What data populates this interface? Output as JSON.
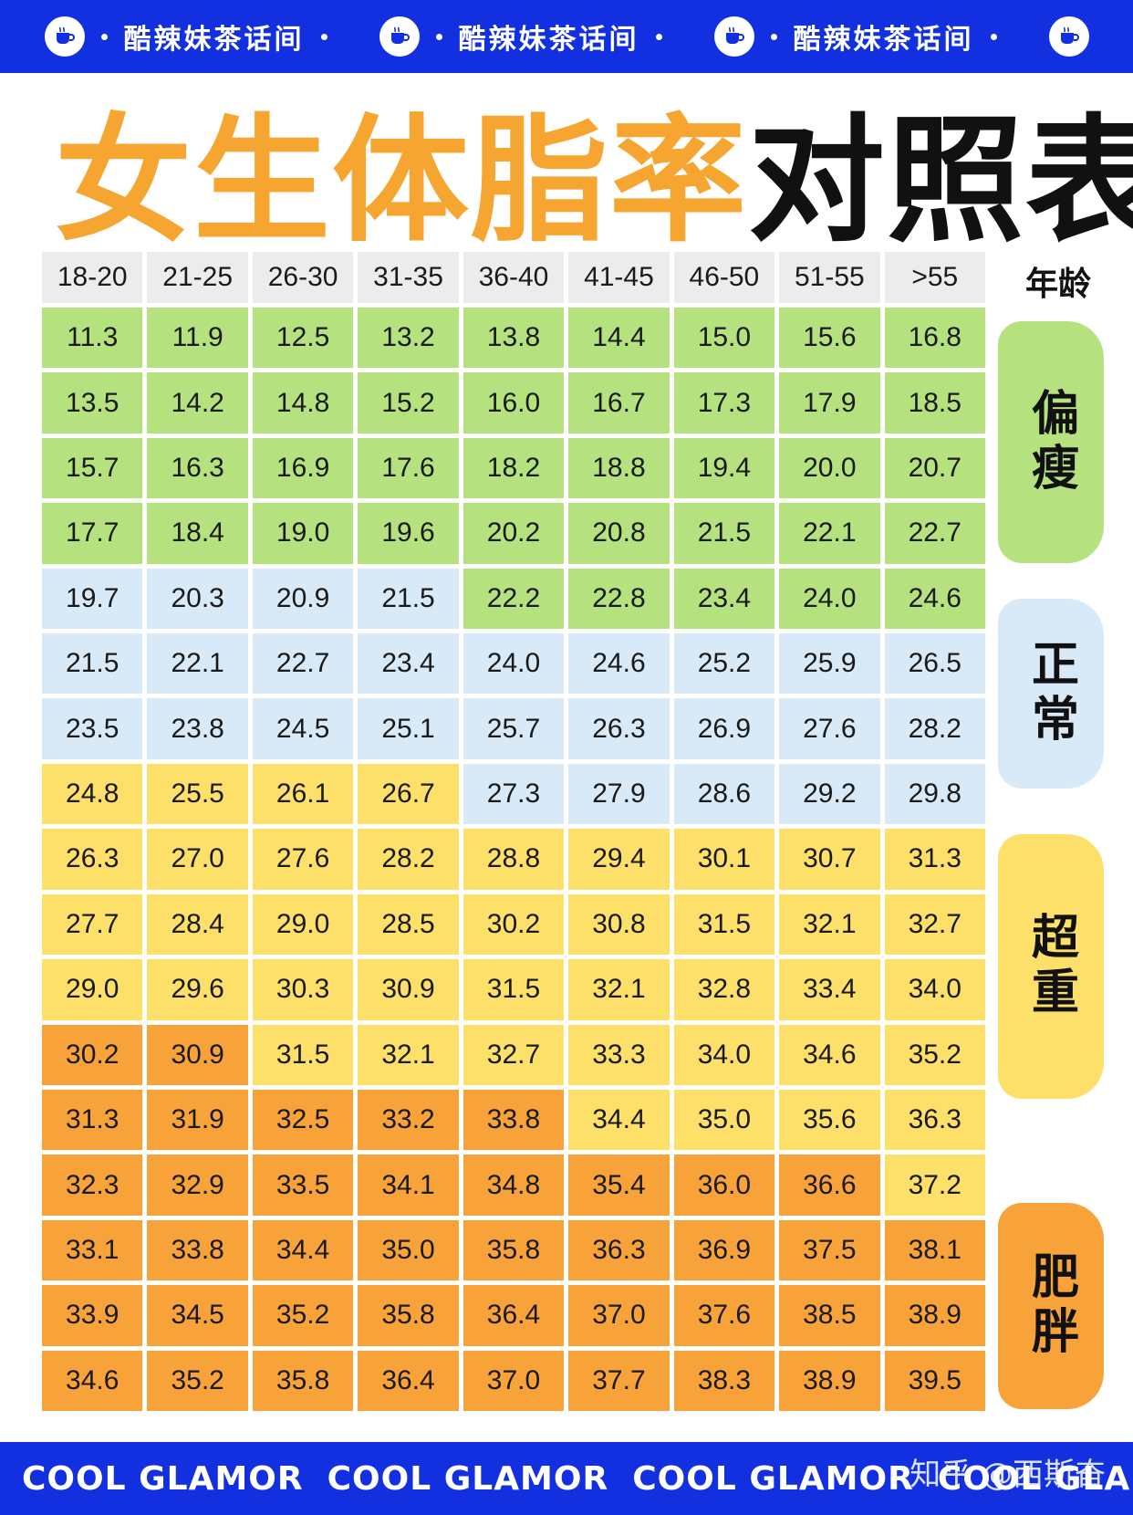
{
  "banner": {
    "text": "酷辣妹茶话间",
    "icon": "coffee-cup-icon"
  },
  "title": {
    "highlight": "女生体脂率",
    "rest": "对照表"
  },
  "age_label": "年龄",
  "age_groups": [
    "18-20",
    "21-25",
    "26-30",
    "31-35",
    "36-40",
    "41-45",
    "46-50",
    "51-55",
    ">55"
  ],
  "rows": [
    [
      "11.3",
      "11.9",
      "12.5",
      "13.2",
      "13.8",
      "14.4",
      "15.0",
      "15.6",
      "16.8"
    ],
    [
      "13.5",
      "14.2",
      "14.8",
      "15.2",
      "16.0",
      "16.7",
      "17.3",
      "17.9",
      "18.5"
    ],
    [
      "15.7",
      "16.3",
      "16.9",
      "17.6",
      "18.2",
      "18.8",
      "19.4",
      "20.0",
      "20.7"
    ],
    [
      "17.7",
      "18.4",
      "19.0",
      "19.6",
      "20.2",
      "20.8",
      "21.5",
      "22.1",
      "22.7"
    ],
    [
      "19.7",
      "20.3",
      "20.9",
      "21.5",
      "22.2",
      "22.8",
      "23.4",
      "24.0",
      "24.6"
    ],
    [
      "21.5",
      "22.1",
      "22.7",
      "23.4",
      "24.0",
      "24.6",
      "25.2",
      "25.9",
      "26.5"
    ],
    [
      "23.5",
      "23.8",
      "24.5",
      "25.1",
      "25.7",
      "26.3",
      "26.9",
      "27.6",
      "28.2"
    ],
    [
      "24.8",
      "25.5",
      "26.1",
      "26.7",
      "27.3",
      "27.9",
      "28.6",
      "29.2",
      "29.8"
    ],
    [
      "26.3",
      "27.0",
      "27.6",
      "28.2",
      "28.8",
      "29.4",
      "30.1",
      "30.7",
      "31.3"
    ],
    [
      "27.7",
      "28.4",
      "29.0",
      "28.5",
      "30.2",
      "30.8",
      "31.5",
      "32.1",
      "32.7"
    ],
    [
      "29.0",
      "29.6",
      "30.3",
      "30.9",
      "31.5",
      "32.1",
      "32.8",
      "33.4",
      "34.0"
    ],
    [
      "30.2",
      "30.9",
      "31.5",
      "32.1",
      "32.7",
      "33.3",
      "34.0",
      "34.6",
      "35.2"
    ],
    [
      "31.3",
      "31.9",
      "32.5",
      "33.2",
      "33.8",
      "34.4",
      "35.0",
      "35.6",
      "36.3"
    ],
    [
      "32.3",
      "32.9",
      "33.5",
      "34.1",
      "34.8",
      "35.4",
      "36.0",
      "36.6",
      "37.2"
    ],
    [
      "33.1",
      "33.8",
      "34.4",
      "35.0",
      "35.8",
      "36.3",
      "36.9",
      "37.5",
      "38.1"
    ],
    [
      "33.9",
      "34.5",
      "35.2",
      "35.8",
      "36.4",
      "37.0",
      "37.6",
      "38.5",
      "38.9"
    ],
    [
      "34.6",
      "35.2",
      "35.8",
      "36.4",
      "37.0",
      "37.7",
      "38.3",
      "38.9",
      "39.5"
    ]
  ],
  "cell_categories": [
    "ggggggggg",
    "ggggggggg",
    "ggggggggg",
    "ggggggggg",
    "bbbbggggg",
    "bbbbbbbbb",
    "bbbbbbbbb",
    "yyyybbbbb",
    "yyyyyyyyy",
    "yyyyyyyyy",
    "yyyyyyyyy",
    "ooyyyyyyy",
    "oooooyyyy",
    "ooooooooy",
    "ooooooooo",
    "ooooooooo",
    "ooooooooo"
  ],
  "categories": {
    "thin": "偏瘦",
    "normal": "正常",
    "overweight": "超重",
    "obese": "肥胖"
  },
  "colors": {
    "banner": "#1230e0",
    "title_orange": "#f7a531",
    "thin": "#b5e17f",
    "normal": "#d8e9f8",
    "overweight": "#fde06a",
    "obese": "#f8a33a"
  },
  "footer": {
    "text": "COOL GLAMOR",
    "watermark": "知乎 @西斯奋"
  }
}
